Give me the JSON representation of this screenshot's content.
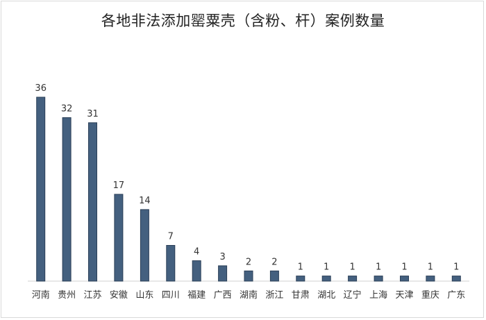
{
  "chart_data": {
    "type": "bar",
    "title": "各地非法添加罂粟壳（含粉、杆）案例数量",
    "categories": [
      "河南",
      "贵州",
      "江苏",
      "安徽",
      "山东",
      "四川",
      "福建",
      "广西",
      "湖南",
      "浙江",
      "甘肃",
      "湖北",
      "辽宁",
      "上海",
      "天津",
      "重庆",
      "广东"
    ],
    "values": [
      36,
      32,
      31,
      17,
      14,
      7,
      4,
      3,
      2,
      2,
      1,
      1,
      1,
      1,
      1,
      1,
      1
    ],
    "xlabel": "",
    "ylabel": "",
    "ylim": [
      0,
      36
    ],
    "grid": false,
    "legend": "none",
    "bar_color": "#44607f",
    "bar_edge_color": "#2b3f57"
  }
}
